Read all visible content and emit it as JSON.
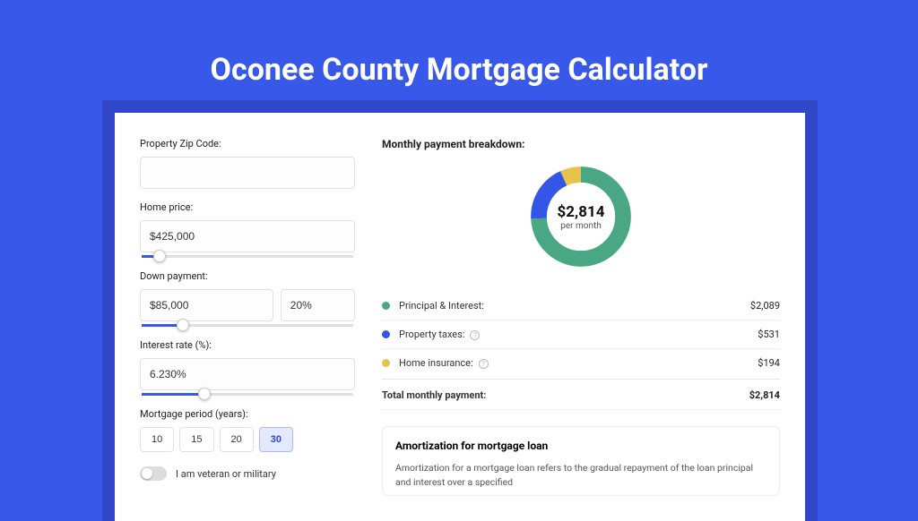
{
  "page": {
    "title": "Oconee County Mortgage Calculator",
    "background_color": "#3858e9",
    "card_shadow_color": "#3048c8"
  },
  "form": {
    "zip": {
      "label": "Property Zip Code:",
      "value": ""
    },
    "price": {
      "label": "Home price:",
      "value": "$425,000",
      "slider_percent": 9
    },
    "down": {
      "label": "Down payment:",
      "amount": "$85,000",
      "percent": "20%",
      "slider_percent": 20
    },
    "rate": {
      "label": "Interest rate (%):",
      "value": "6.230%",
      "slider_percent": 30
    },
    "period": {
      "label": "Mortgage period (years):",
      "options": [
        "10",
        "15",
        "20",
        "30"
      ],
      "selected": "30"
    },
    "veteran": {
      "label": "I am veteran or military",
      "checked": false
    }
  },
  "breakdown": {
    "title": "Monthly payment breakdown:",
    "donut": {
      "total_label": "$2,814",
      "sub_label": "per month",
      "segments": [
        {
          "key": "principal_interest",
          "value": 2089,
          "color": "#49a883",
          "pct": 0.742
        },
        {
          "key": "property_taxes",
          "value": 531,
          "color": "#3356e6",
          "pct": 0.189
        },
        {
          "key": "home_insurance",
          "value": 194,
          "color": "#e8c34b",
          "pct": 0.069
        }
      ]
    },
    "items": [
      {
        "label": "Principal & Interest:",
        "value": "$2,089",
        "color": "#49a883",
        "info": false
      },
      {
        "label": "Property taxes:",
        "value": "$531",
        "color": "#3356e6",
        "info": true
      },
      {
        "label": "Home insurance:",
        "value": "$194",
        "color": "#e8c34b",
        "info": true
      }
    ],
    "total": {
      "label": "Total monthly payment:",
      "value": "$2,814"
    }
  },
  "amortization": {
    "title": "Amortization for mortgage loan",
    "body": "Amortization for a mortgage loan refers to the gradual repayment of the loan principal and interest over a specified"
  }
}
